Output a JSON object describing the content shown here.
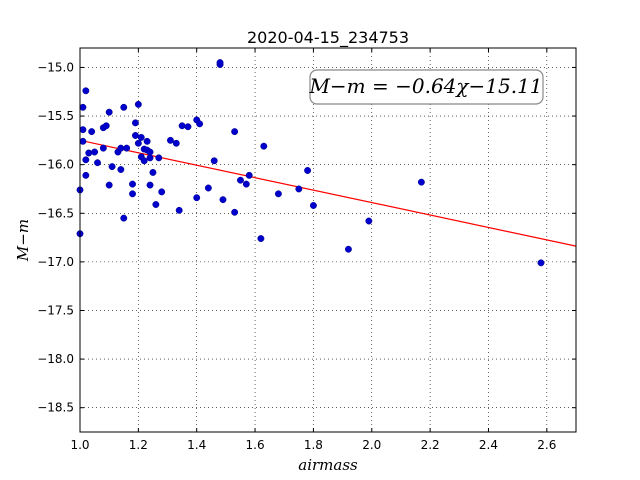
{
  "chart_data": {
    "type": "scatter",
    "title": "2020-04-15_234753",
    "xlabel": "airmass",
    "ylabel": "M−m",
    "xlim": [
      1.0,
      2.7
    ],
    "ylim": [
      -18.75,
      -14.8
    ],
    "y_inverted": true,
    "grid": true,
    "x_ticks": [
      1.0,
      1.2,
      1.4,
      1.6,
      1.8,
      2.0,
      2.2,
      2.4,
      2.6
    ],
    "x_tick_labels": [
      "1.0",
      "1.2",
      "1.4",
      "1.6",
      "1.8",
      "2.0",
      "2.2",
      "2.4",
      "2.6"
    ],
    "y_ticks": [
      -15.0,
      -15.5,
      -16.0,
      -16.5,
      -17.0,
      -17.5,
      -18.0,
      -18.5
    ],
    "y_tick_labels": [
      "−15.0",
      "−15.5",
      "−16.0",
      "−16.5",
      "−17.0",
      "−17.5",
      "−18.0",
      "−18.5"
    ],
    "annotation": "M−m = −0.64χ−15.11",
    "fit": {
      "slope": -0.64,
      "intercept": -15.11,
      "x_range": [
        1.02,
        2.7
      ],
      "color": "#ff0000"
    },
    "points_color": "#0000cc",
    "points": [
      [
        1.0,
        -16.26
      ],
      [
        1.0,
        -16.71
      ],
      [
        1.01,
        -15.41
      ],
      [
        1.01,
        -15.64
      ],
      [
        1.01,
        -15.76
      ],
      [
        1.02,
        -15.95
      ],
      [
        1.02,
        -16.11
      ],
      [
        1.02,
        -15.24
      ],
      [
        1.03,
        -15.88
      ],
      [
        1.04,
        -15.66
      ],
      [
        1.05,
        -15.87
      ],
      [
        1.06,
        -15.98
      ],
      [
        1.08,
        -15.83
      ],
      [
        1.08,
        -15.62
      ],
      [
        1.09,
        -15.6
      ],
      [
        1.1,
        -16.21
      ],
      [
        1.1,
        -15.46
      ],
      [
        1.11,
        -16.02
      ],
      [
        1.13,
        -15.87
      ],
      [
        1.14,
        -15.83
      ],
      [
        1.14,
        -16.05
      ],
      [
        1.15,
        -15.41
      ],
      [
        1.15,
        -16.55
      ],
      [
        1.16,
        -15.83
      ],
      [
        1.18,
        -16.2
      ],
      [
        1.18,
        -16.3
      ],
      [
        1.19,
        -15.7
      ],
      [
        1.19,
        -15.57
      ],
      [
        1.2,
        -15.78
      ],
      [
        1.2,
        -15.38
      ],
      [
        1.21,
        -15.72
      ],
      [
        1.21,
        -15.92
      ],
      [
        1.22,
        -15.84
      ],
      [
        1.22,
        -15.96
      ],
      [
        1.23,
        -15.76
      ],
      [
        1.23,
        -15.85
      ],
      [
        1.24,
        -16.21
      ],
      [
        1.24,
        -15.93
      ],
      [
        1.24,
        -15.87
      ],
      [
        1.25,
        -16.08
      ],
      [
        1.26,
        -16.41
      ],
      [
        1.27,
        -15.93
      ],
      [
        1.28,
        -16.28
      ],
      [
        1.31,
        -15.75
      ],
      [
        1.33,
        -15.78
      ],
      [
        1.34,
        -16.47
      ],
      [
        1.35,
        -15.6
      ],
      [
        1.37,
        -15.61
      ],
      [
        1.4,
        -15.54
      ],
      [
        1.4,
        -16.34
      ],
      [
        1.41,
        -15.58
      ],
      [
        1.44,
        -16.24
      ],
      [
        1.46,
        -15.96
      ],
      [
        1.48,
        -14.97
      ],
      [
        1.48,
        -14.95
      ],
      [
        1.49,
        -16.36
      ],
      [
        1.53,
        -15.66
      ],
      [
        1.53,
        -16.49
      ],
      [
        1.55,
        -16.16
      ],
      [
        1.57,
        -16.2
      ],
      [
        1.58,
        -16.11
      ],
      [
        1.62,
        -16.76
      ],
      [
        1.63,
        -15.81
      ],
      [
        1.68,
        -16.3
      ],
      [
        1.75,
        -16.25
      ],
      [
        1.78,
        -16.06
      ],
      [
        1.8,
        -16.42
      ],
      [
        1.92,
        -16.87
      ],
      [
        1.99,
        -16.58
      ],
      [
        2.17,
        -16.18
      ],
      [
        2.58,
        -17.01
      ]
    ]
  }
}
